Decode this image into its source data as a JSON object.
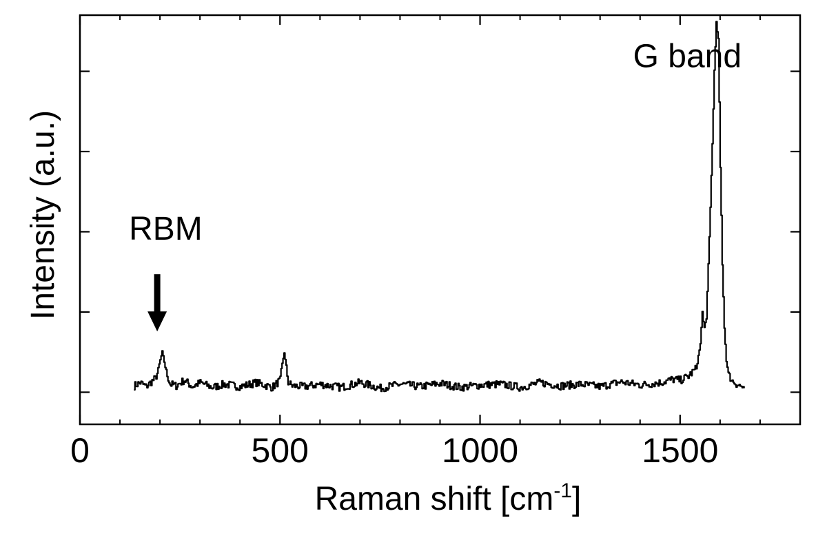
{
  "chart_data": {
    "type": "line",
    "title": "",
    "xlabel": "Raman shift [cm-1]",
    "xlabel_parts": {
      "main": "Raman shift [cm",
      "sup": "-1",
      "end": "]"
    },
    "ylabel": "Intensity (a.u.)",
    "xlim": [
      0,
      1800
    ],
    "ylim": [
      -0.4,
      4.7
    ],
    "x_major_ticks": [
      0,
      500,
      1000,
      1500
    ],
    "x_tick_labels": [
      "0",
      "500",
      "1000",
      "1500"
    ],
    "x_minor_step": 100,
    "y_ticks": [
      0,
      1,
      2,
      3,
      4
    ],
    "y_tick_labels_visible": false,
    "grid": false,
    "legend": "none",
    "line_color": "#000000",
    "series": [
      {
        "x": [
          135,
          150,
          165,
          180,
          190,
          200,
          205,
          210,
          215,
          225,
          240,
          260,
          280,
          300,
          330,
          360,
          400,
          440,
          480,
          500,
          505,
          510,
          515,
          520,
          530,
          560,
          600,
          650,
          700,
          750,
          800,
          850,
          900,
          950,
          1000,
          1050,
          1100,
          1150,
          1200,
          1250,
          1300,
          1350,
          1400,
          1450,
          1480,
          1500,
          1520,
          1540,
          1550,
          1555,
          1560,
          1565,
          1570,
          1575,
          1580,
          1585,
          1590,
          1595,
          1600,
          1605,
          1610,
          1615,
          1620,
          1630,
          1645,
          1660
        ],
        "y": [
          0.08,
          0.12,
          0.07,
          0.14,
          0.18,
          0.4,
          0.5,
          0.38,
          0.25,
          0.1,
          0.08,
          0.15,
          0.07,
          0.12,
          0.06,
          0.1,
          0.07,
          0.12,
          0.06,
          0.15,
          0.35,
          0.5,
          0.3,
          0.12,
          0.08,
          0.07,
          0.1,
          0.06,
          0.12,
          0.05,
          0.1,
          0.07,
          0.11,
          0.06,
          0.09,
          0.1,
          0.06,
          0.12,
          0.08,
          0.1,
          0.07,
          0.13,
          0.09,
          0.12,
          0.16,
          0.15,
          0.2,
          0.3,
          0.6,
          1.0,
          0.8,
          0.9,
          1.6,
          2.3,
          3.1,
          4.0,
          4.6,
          4.4,
          2.8,
          1.6,
          0.8,
          0.4,
          0.22,
          0.14,
          0.09,
          0.05
        ]
      }
    ],
    "annotations": [
      {
        "text": "RBM",
        "x": 200,
        "y": 1.9,
        "arrow": true
      },
      {
        "text": "G band",
        "x": 1460,
        "y": 4.05,
        "arrow": false
      }
    ]
  }
}
